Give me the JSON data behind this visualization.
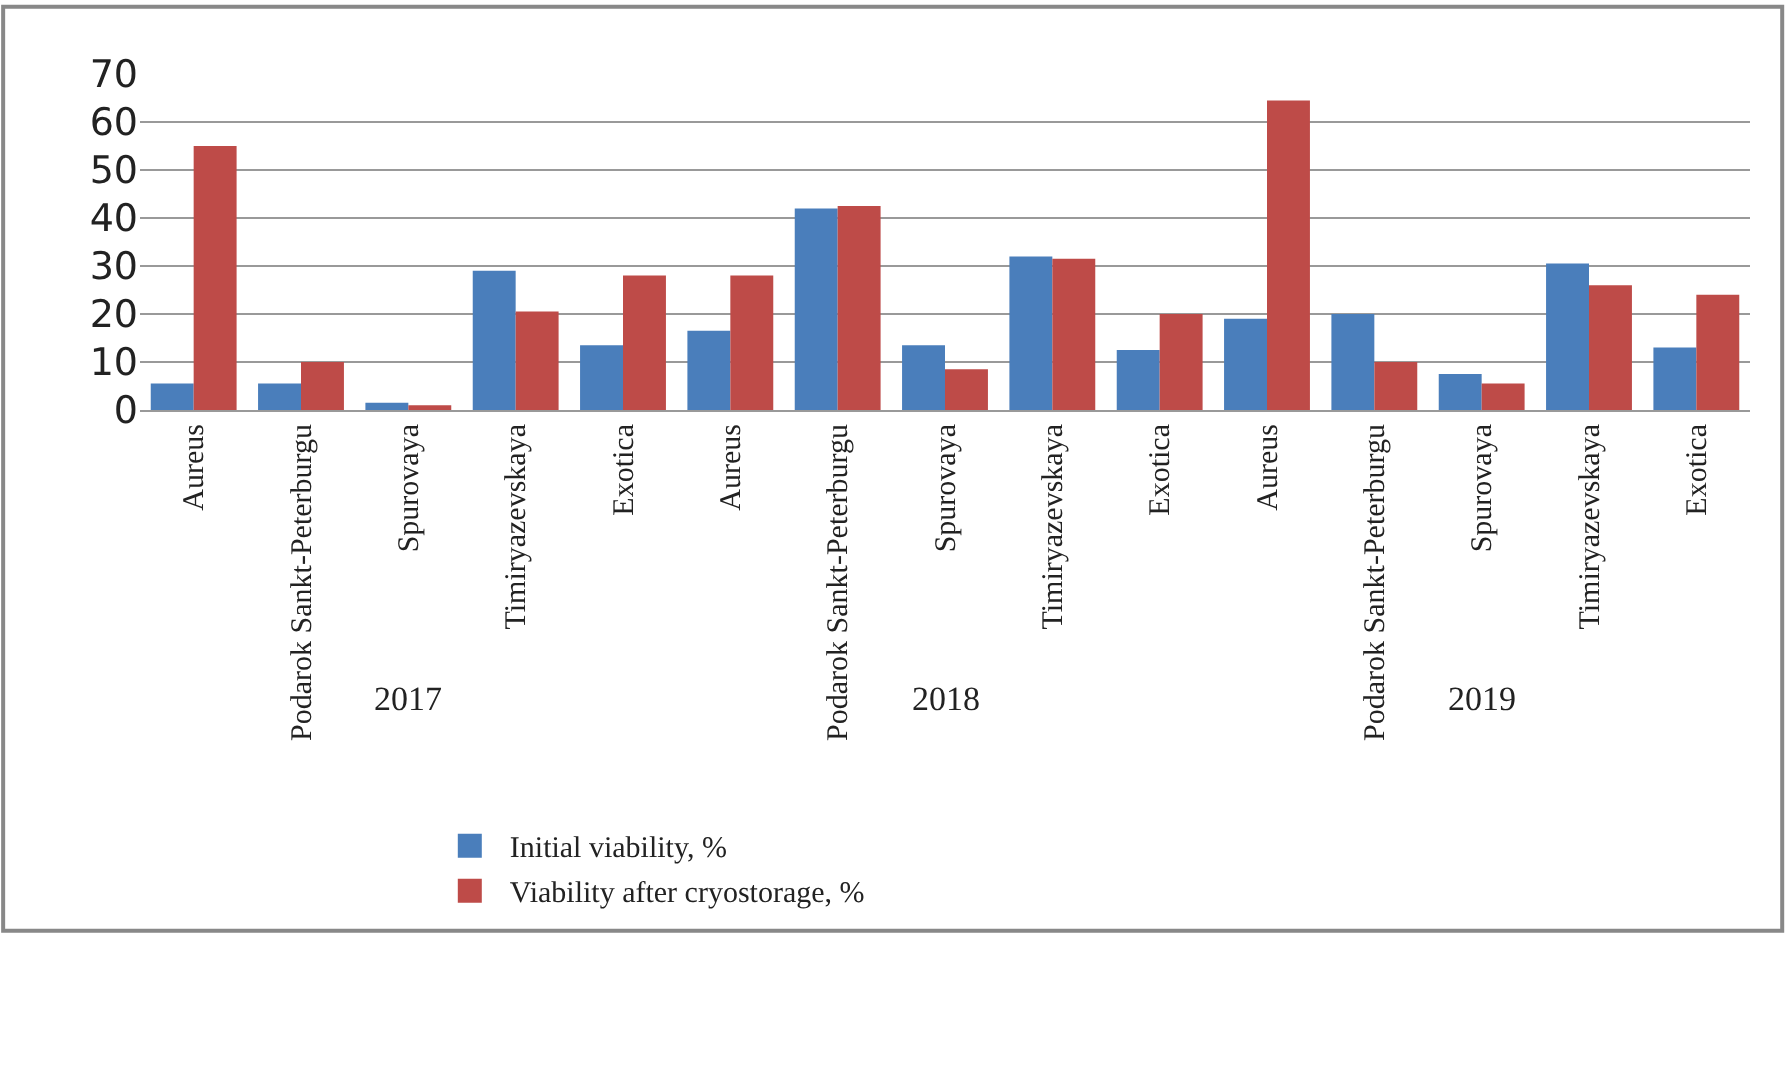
{
  "chart_data": {
    "type": "bar",
    "categories": [
      "Aureus",
      "Podarok Sankt-Peterburgu",
      "Spurovaya",
      "Timiryazevskaya",
      "Exotica",
      "Aureus",
      "Podarok Sankt-Peterburgu",
      "Spurovaya",
      "Timiryazevskaya",
      "Exotica",
      "Aureus",
      "Podarok Sankt-Peterburgu",
      "Spurovaya",
      "Timiryazevskaya",
      "Exotica"
    ],
    "series": [
      {
        "name": "Initial viability, %",
        "color": "#4a7ebb",
        "values": [
          5.5,
          5.5,
          1.5,
          29,
          13.5,
          16.5,
          42,
          13.5,
          32,
          12.5,
          19,
          20,
          7.5,
          30.5,
          13
        ]
      },
      {
        "name": "Viability after cryostorage, %",
        "color": "#be4b48",
        "values": [
          55,
          10,
          1,
          20.5,
          28,
          28,
          42.5,
          8.5,
          31.5,
          20,
          64.5,
          10,
          5.5,
          26,
          24
        ]
      }
    ],
    "annotations": [
      "2017",
      "2018",
      "2019"
    ],
    "ylim": [
      0,
      70
    ],
    "yticks": [
      0,
      10,
      20,
      30,
      40,
      50,
      60,
      70
    ],
    "grid": "y",
    "legend": "bottom"
  }
}
